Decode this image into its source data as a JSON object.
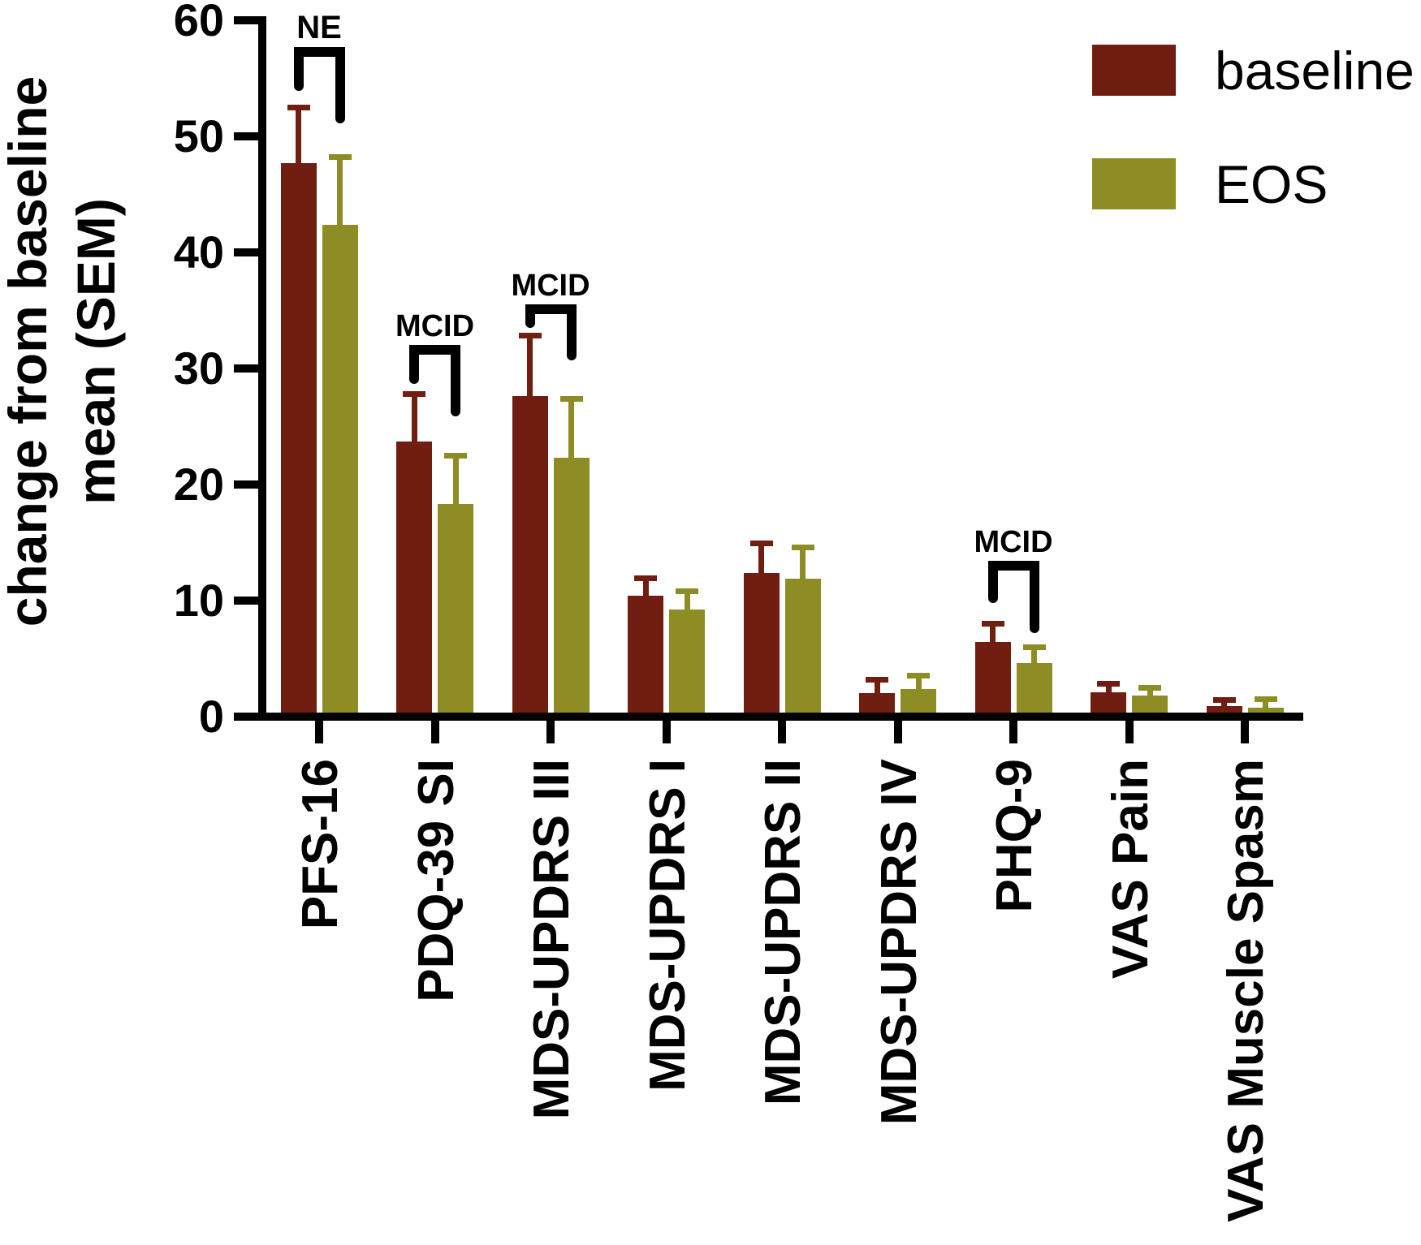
{
  "figure": {
    "background": "#ffffff"
  },
  "chart_data": {
    "type": "bar",
    "title": "",
    "ylabel": "change from baseline mean (SEM)",
    "ylabel_lines": [
      "change from baseline",
      "mean (SEM)"
    ],
    "xlabel": "",
    "ylim": [
      0,
      60
    ],
    "y_ticks": [
      0,
      10,
      20,
      30,
      40,
      50,
      60
    ],
    "grid": false,
    "axis_color": "#000000",
    "error_bars": "upper SEM whiskers with caps, colored per series",
    "categories": [
      "PFS-16",
      "PDQ-39 SI",
      "MDS-UPDRS III",
      "MDS-UPDRS I",
      "MDS-UPDRS II",
      "MDS-UPDRS IV",
      "PHQ-9",
      "VAS Pain",
      "VAS Muscle Spasm"
    ],
    "series": [
      {
        "name": "baseline",
        "color": "#6F1E11",
        "values": [
          47.7,
          23.7,
          27.6,
          10.4,
          12.4,
          2.0,
          6.4,
          2.1,
          0.9
        ],
        "sem": [
          4.8,
          4.1,
          5.2,
          1.5,
          2.5,
          1.2,
          1.6,
          0.7,
          0.5
        ]
      },
      {
        "name": "EOS",
        "color": "#8E8C25",
        "values": [
          42.4,
          18.3,
          22.3,
          9.2,
          11.9,
          2.4,
          4.6,
          1.8,
          0.8
        ],
        "sem": [
          5.8,
          4.2,
          5.1,
          1.6,
          2.7,
          1.1,
          1.4,
          0.7,
          0.7
        ]
      }
    ],
    "legend": {
      "position": "top-right",
      "entries": [
        {
          "label": "baseline",
          "color": "#6F1E11"
        },
        {
          "label": "EOS",
          "color": "#8E8C25"
        }
      ]
    },
    "annotations": [
      {
        "label": "NE",
        "category": "PFS-16",
        "bracket_top_value": 57.3,
        "left_leg_end_value": 53.9,
        "right_leg_end_value": 51.1
      },
      {
        "label": "MCID",
        "category": "PDQ-39 SI",
        "bracket_top_value": 31.6,
        "left_leg_end_value": 28.7,
        "right_leg_end_value": 25.9
      },
      {
        "label": "MCID",
        "category": "MDS-UPDRS III",
        "bracket_top_value": 35.1,
        "left_leg_end_value": 33.5,
        "right_leg_end_value": 30.7
      },
      {
        "label": "MCID",
        "category": "PHQ-9",
        "bracket_top_value": 13.0,
        "left_leg_end_value": 9.8,
        "right_leg_end_value": 7.2
      }
    ]
  }
}
